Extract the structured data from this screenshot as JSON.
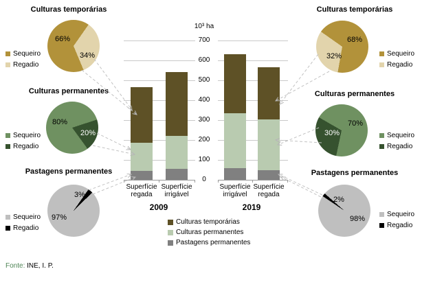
{
  "footer": {
    "prefix": "Fonte:",
    "source": "INE, I. P."
  },
  "chart_data": [
    {
      "type": "bar",
      "stacked": true,
      "unit_label": "10³ ha",
      "ylim": [
        0,
        700
      ],
      "yticks": [
        700,
        600,
        500,
        400,
        300,
        200,
        100,
        0
      ],
      "grid": true,
      "series": [
        {
          "name": "Culturas temporárias",
          "color": "#5e5126"
        },
        {
          "name": "Culturas permanentes",
          "color": "#b9cbb0"
        },
        {
          "name": "Pastagens permanentes",
          "color": "#808080"
        }
      ],
      "groups": [
        {
          "label": "2009",
          "bars": [
            {
              "label": "Superfície regada",
              "values": [
                280,
                140,
                45
              ]
            },
            {
              "label": "Superfície irrigável",
              "values": [
                320,
                165,
                55
              ]
            }
          ]
        },
        {
          "label": "2019",
          "bars": [
            {
              "label": "Superfície irrigável",
              "values": [
                295,
                275,
                60
              ]
            },
            {
              "label": "Superfície regada",
              "values": [
                260,
                255,
                50
              ]
            }
          ]
        }
      ]
    },
    {
      "type": "pie",
      "position": "left-top",
      "title": "Culturas temporárias",
      "slices": [
        {
          "label": "Sequeiro",
          "pct": 66,
          "color": "#b2923a"
        },
        {
          "label": "Regadio",
          "pct": 34,
          "color": "#e2d4ac"
        }
      ],
      "pct_labels": [
        "66%",
        "34%"
      ],
      "gradient_start": 35
    },
    {
      "type": "pie",
      "position": "left-middle",
      "title": "Culturas permanentes",
      "slices": [
        {
          "label": "Sequeiro",
          "pct": 80,
          "color": "#6f9161"
        },
        {
          "label": "Regadio",
          "pct": 20,
          "color": "#36522f"
        }
      ],
      "pct_labels": [
        "80%",
        "20%"
      ],
      "gradient_start": 72
    },
    {
      "type": "pie",
      "position": "left-bottom",
      "title": "Pastagens permanentes",
      "slices": [
        {
          "label": "Sequeiro",
          "pct": 97,
          "color": "#bfbfbf"
        },
        {
          "label": "Regadio",
          "pct": 3,
          "color": "#000000"
        }
      ],
      "pct_labels": [
        "97%",
        "3%"
      ],
      "gradient_start": 35
    },
    {
      "type": "pie",
      "position": "right-top",
      "title": "Culturas temporárias",
      "slices": [
        {
          "label": "Sequeiro",
          "pct": 68,
          "color": "#b2923a"
        },
        {
          "label": "Regadio",
          "pct": 32,
          "color": "#e2d4ac"
        }
      ],
      "pct_labels": [
        "68%",
        "32%"
      ],
      "gradient_start": 190
    },
    {
      "type": "pie",
      "position": "right-middle",
      "title": "Culturas permanentes",
      "slices": [
        {
          "label": "Sequeiro",
          "pct": 70,
          "color": "#6f9161"
        },
        {
          "label": "Regadio",
          "pct": 30,
          "color": "#36522f"
        }
      ],
      "pct_labels": [
        "70%",
        "30%"
      ],
      "gradient_start": 192
    },
    {
      "type": "pie",
      "position": "right-bottom",
      "title": "Pastagens permanentes",
      "slices": [
        {
          "label": "Sequeiro",
          "pct": 98,
          "color": "#bfbfbf"
        },
        {
          "label": "Regadio",
          "pct": 2,
          "color": "#000000"
        }
      ],
      "pct_labels": [
        "98%",
        "2%"
      ],
      "gradient_start": 304
    }
  ]
}
